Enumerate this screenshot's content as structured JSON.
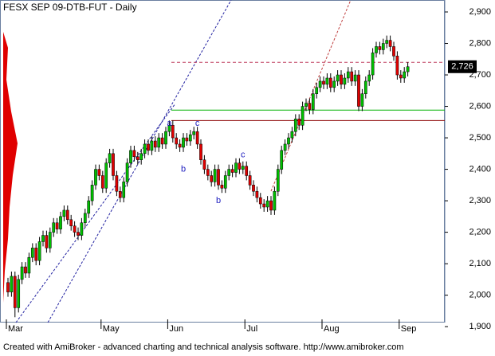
{
  "chart_data": {
    "type": "candlestick",
    "title": "FESX SEP 09-DTB-FUT - Daily",
    "footer": "Created with AmiBroker - advanced charting and technical analysis software. http://www.amibroker.com",
    "categories": [
      "Mar",
      null,
      null,
      null,
      null,
      null,
      null,
      null,
      null,
      null,
      null,
      null,
      null,
      null,
      null,
      null,
      null,
      null,
      null,
      null,
      null,
      null,
      null,
      null,
      null,
      null,
      null,
      "May",
      null,
      null,
      null,
      null,
      null,
      null,
      null,
      null,
      null,
      null,
      null,
      null,
      null,
      null,
      null,
      null,
      null,
      null,
      "Jun",
      null,
      null,
      null,
      null,
      null,
      null,
      null,
      null,
      null,
      null,
      null,
      null,
      null,
      null,
      null,
      null,
      null,
      null,
      null,
      null,
      null,
      "Jul",
      null,
      null,
      null,
      null,
      null,
      null,
      null,
      null,
      null,
      null,
      null,
      null,
      null,
      null,
      null,
      null,
      null,
      null,
      null,
      null,
      null,
      "Aug",
      null,
      null,
      null,
      null,
      null,
      null,
      null,
      null,
      null,
      null,
      null,
      null,
      null,
      null,
      null,
      null,
      null,
      null,
      null,
      null,
      null,
      "Sep",
      null,
      null
    ],
    "open": [
      2040,
      2010,
      2060,
      1960,
      2050,
      2090,
      2070,
      2120,
      2150,
      2110,
      2170,
      2190,
      2150,
      2200,
      2230,
      2210,
      2250,
      2270,
      2240,
      2220,
      2200,
      2190,
      2230,
      2260,
      2300,
      2350,
      2400,
      2380,
      2340,
      2420,
      2450,
      2380,
      2330,
      2310,
      2360,
      2420,
      2460,
      2440,
      2430,
      2450,
      2480,
      2460,
      2490,
      2470,
      2500,
      2480,
      2520,
      2540,
      2500,
      2480,
      2470,
      2500,
      2490,
      2510,
      2520,
      2480,
      2430,
      2400,
      2380,
      2360,
      2400,
      2350,
      2340,
      2380,
      2400,
      2390,
      2420,
      2400,
      2410,
      2380,
      2350,
      2330,
      2310,
      2290,
      2280,
      2300,
      2270,
      2330,
      2400,
      2460,
      2480,
      2500,
      2520,
      2560,
      2540,
      2600,
      2610,
      2590,
      2640,
      2660,
      2680,
      2670,
      2690,
      2660,
      2680,
      2700,
      2670,
      2690,
      2710,
      2680,
      2700,
      2600,
      2640,
      2680,
      2700,
      2770,
      2790,
      2780,
      2800,
      2810,
      2790,
      2760,
      2700,
      2690,
      2710
    ],
    "high": [
      2055,
      2075,
      2075,
      2065,
      2105,
      2105,
      2135,
      2165,
      2165,
      2185,
      2205,
      2205,
      2215,
      2245,
      2245,
      2265,
      2285,
      2285,
      2255,
      2235,
      2215,
      2245,
      2275,
      2315,
      2365,
      2415,
      2415,
      2395,
      2435,
      2465,
      2465,
      2395,
      2345,
      2375,
      2435,
      2475,
      2475,
      2455,
      2465,
      2495,
      2495,
      2505,
      2505,
      2515,
      2515,
      2535,
      2555,
      2555,
      2515,
      2495,
      2515,
      2515,
      2525,
      2535,
      2535,
      2495,
      2445,
      2415,
      2395,
      2415,
      2415,
      2365,
      2395,
      2415,
      2415,
      2435,
      2435,
      2425,
      2425,
      2395,
      2365,
      2345,
      2325,
      2305,
      2315,
      2315,
      2345,
      2415,
      2475,
      2495,
      2515,
      2535,
      2575,
      2575,
      2615,
      2625,
      2625,
      2655,
      2675,
      2695,
      2695,
      2705,
      2705,
      2695,
      2715,
      2715,
      2705,
      2725,
      2725,
      2715,
      2715,
      2655,
      2695,
      2715,
      2785,
      2805,
      2805,
      2815,
      2825,
      2825,
      2805,
      2775,
      2715,
      2725,
      2740
    ],
    "low": [
      1995,
      1995,
      1930,
      1945,
      2035,
      2055,
      2055,
      2105,
      2095,
      2095,
      2155,
      2135,
      2135,
      2185,
      2195,
      2195,
      2235,
      2225,
      2205,
      2185,
      2175,
      2175,
      2215,
      2245,
      2285,
      2335,
      2365,
      2325,
      2325,
      2405,
      2365,
      2315,
      2295,
      2295,
      2345,
      2405,
      2425,
      2415,
      2415,
      2435,
      2445,
      2445,
      2455,
      2455,
      2465,
      2465,
      2505,
      2485,
      2465,
      2455,
      2455,
      2475,
      2475,
      2495,
      2465,
      2415,
      2385,
      2365,
      2345,
      2345,
      2335,
      2325,
      2325,
      2365,
      2375,
      2375,
      2385,
      2385,
      2365,
      2335,
      2315,
      2295,
      2275,
      2265,
      2265,
      2255,
      2255,
      2315,
      2385,
      2445,
      2465,
      2485,
      2505,
      2525,
      2525,
      2585,
      2575,
      2575,
      2625,
      2645,
      2655,
      2655,
      2645,
      2645,
      2665,
      2655,
      2655,
      2675,
      2665,
      2665,
      2585,
      2585,
      2625,
      2665,
      2685,
      2755,
      2765,
      2765,
      2785,
      2775,
      2745,
      2685,
      2675,
      2675,
      2695
    ],
    "close": [
      2010,
      2060,
      1960,
      2050,
      2090,
      2070,
      2120,
      2150,
      2110,
      2170,
      2190,
      2150,
      2200,
      2230,
      2210,
      2250,
      2270,
      2240,
      2220,
      2200,
      2190,
      2230,
      2260,
      2300,
      2350,
      2400,
      2380,
      2340,
      2420,
      2450,
      2380,
      2330,
      2310,
      2360,
      2420,
      2460,
      2440,
      2430,
      2450,
      2480,
      2460,
      2490,
      2470,
      2500,
      2480,
      2520,
      2540,
      2500,
      2480,
      2470,
      2500,
      2490,
      2510,
      2520,
      2480,
      2430,
      2400,
      2380,
      2360,
      2400,
      2350,
      2340,
      2380,
      2400,
      2390,
      2420,
      2400,
      2410,
      2380,
      2350,
      2330,
      2310,
      2290,
      2280,
      2300,
      2270,
      2330,
      2400,
      2460,
      2480,
      2500,
      2520,
      2560,
      2540,
      2600,
      2610,
      2590,
      2640,
      2660,
      2680,
      2670,
      2690,
      2660,
      2680,
      2700,
      2670,
      2690,
      2710,
      2680,
      2700,
      2600,
      2640,
      2680,
      2700,
      2770,
      2790,
      2780,
      2800,
      2810,
      2790,
      2760,
      2700,
      2690,
      2710,
      2726
    ],
    "up_color": "#00c000",
    "down_color": "#e00000",
    "ylim": [
      1913,
      2938
    ],
    "yticks": [
      {
        "value": 1900,
        "label": "1,900"
      },
      {
        "value": 2000,
        "label": "2,000"
      },
      {
        "value": 2100,
        "label": "2,100"
      },
      {
        "value": 2200,
        "label": "2,200"
      },
      {
        "value": 2300,
        "label": "2,300"
      },
      {
        "value": 2400,
        "label": "2,400"
      },
      {
        "value": 2500,
        "label": "2,500"
      },
      {
        "value": 2600,
        "label": "2,600"
      },
      {
        "value": 2700,
        "label": "2,700"
      },
      {
        "value": 2800,
        "label": "2,800"
      },
      {
        "value": 2900,
        "label": "2,900"
      }
    ],
    "last": {
      "value": 2726,
      "label": "2,726"
    },
    "levels": [
      {
        "value": 2555,
        "color": "#8b0000"
      },
      {
        "value": 2588,
        "color": "#00b000"
      },
      {
        "value": 2740,
        "color": "#c04060"
      }
    ],
    "annotations": [
      {
        "text": "a",
        "x": 46,
        "y": 2545
      },
      {
        "text": "b",
        "x": 50,
        "y": 2400
      },
      {
        "text": "c",
        "x": 54,
        "y": 2545
      },
      {
        "text": "b",
        "x": 60,
        "y": 2300
      },
      {
        "text": "c",
        "x": 67,
        "y": 2445
      }
    ]
  }
}
